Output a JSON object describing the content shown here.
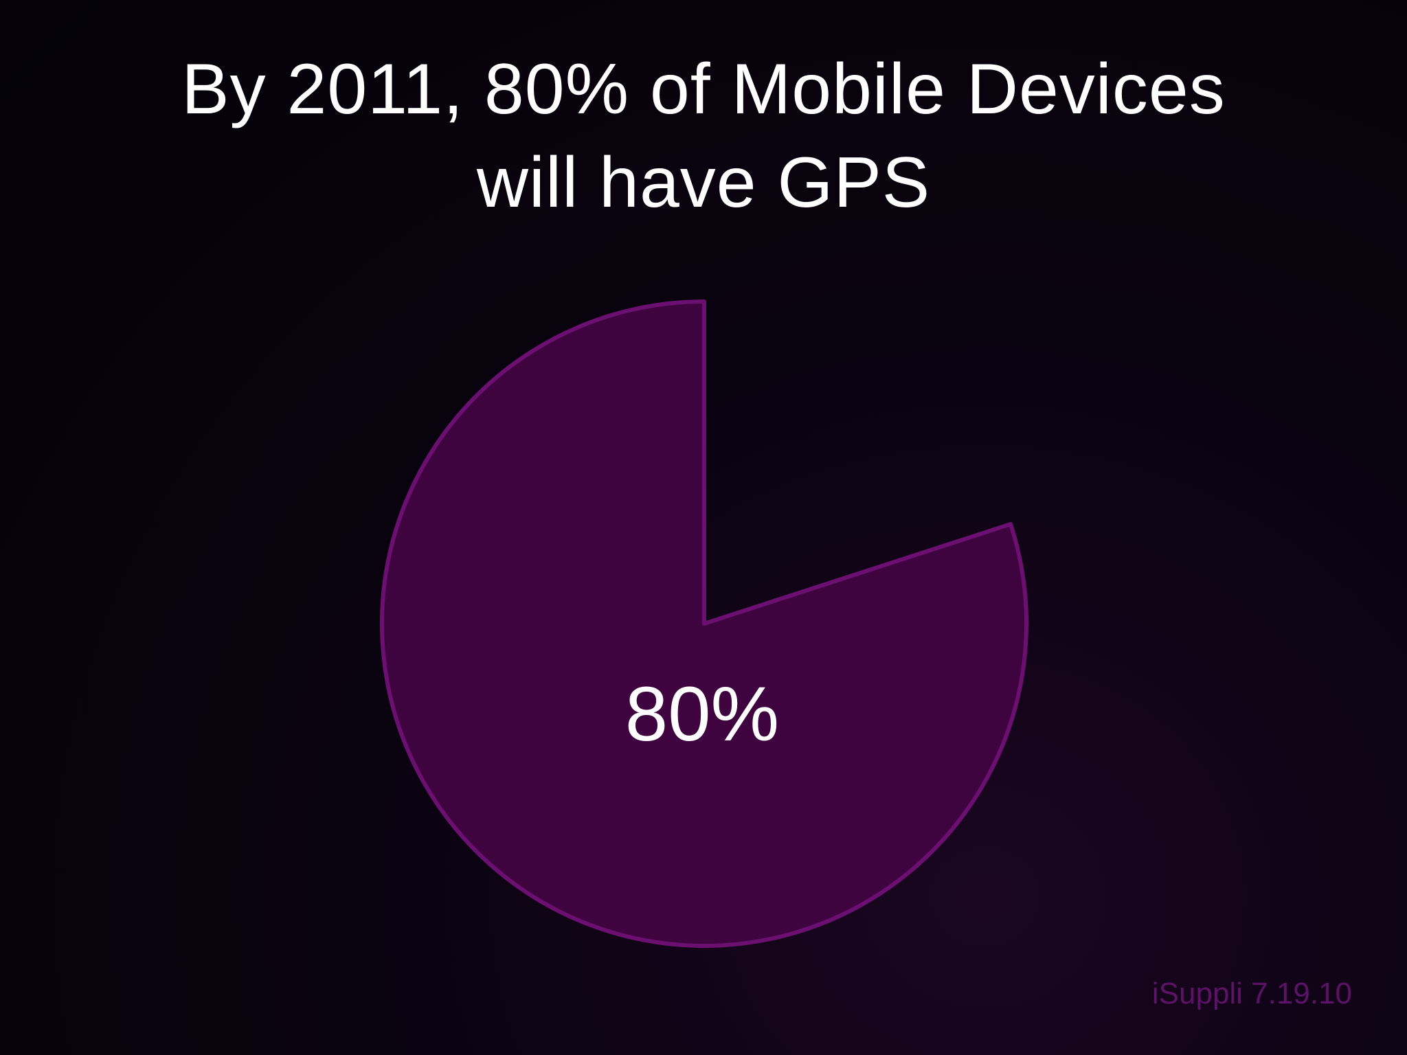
{
  "slide": {
    "title_line1": "By 2011, 80% of Mobile Devices",
    "title_line2": "will have GPS",
    "source": "iSuppli 7.19.10"
  },
  "chart_data": {
    "type": "pie",
    "title": "By 2011, 80% of Mobile Devices will have GPS",
    "slices": [
      {
        "label": "80%",
        "value": 80,
        "color": "#3f0340",
        "stroke": "#6b0f70",
        "shown": true
      },
      {
        "label": "",
        "value": 20,
        "color": "none",
        "stroke": "none",
        "shown": false
      }
    ],
    "start_angle_deg": 0,
    "direction": "counterclockwise",
    "legend": "none"
  }
}
